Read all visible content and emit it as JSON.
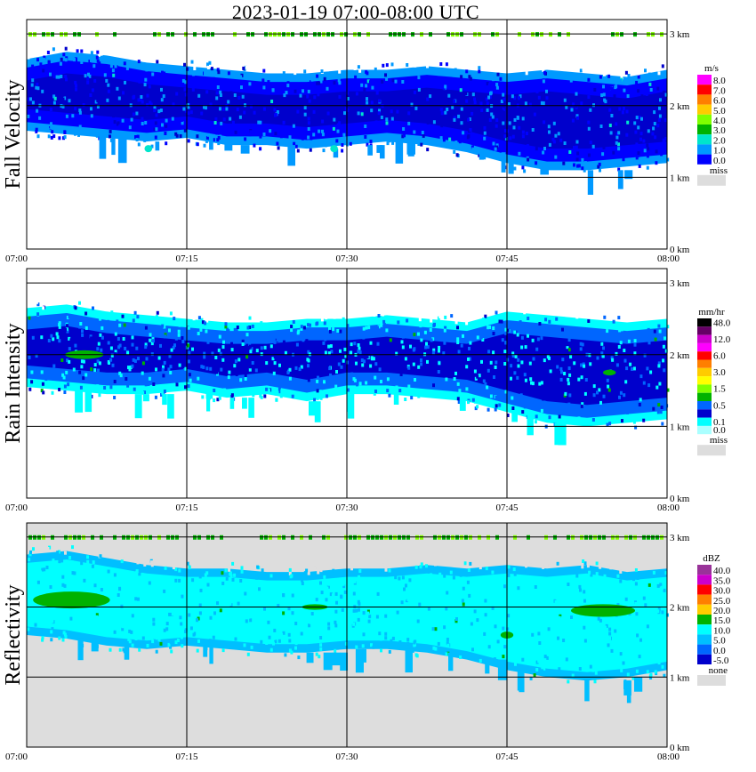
{
  "title": "2023-01-19   07:00-08:00 UTC",
  "chart_data": [
    {
      "type": "heatmap",
      "panel": "fall-velocity",
      "ylabel": "Fall Velocity",
      "x_ticks": [
        "07:00",
        "07:15",
        "07:30",
        "07:45",
        "08:00"
      ],
      "y_ticks": [
        "0 km",
        "1 km",
        "2 km",
        "3 km"
      ],
      "ylim": [
        0,
        3.2
      ],
      "grid": true,
      "legend": {
        "unit": "m/s",
        "position": "right",
        "items": [
          {
            "label": "8.0",
            "color": "#ff00ff"
          },
          {
            "label": "7.0",
            "color": "#ff0000"
          },
          {
            "label": "6.0",
            "color": "#ff7f00"
          },
          {
            "label": "5.0",
            "color": "#ffcc00"
          },
          {
            "label": "4.0",
            "color": "#7fff00"
          },
          {
            "label": "3.0",
            "color": "#00b200"
          },
          {
            "label": "2.0",
            "color": "#00e5cc"
          },
          {
            "label": "1.0",
            "color": "#0099ff"
          },
          {
            "label": "0.0",
            "color": "#0000ff"
          }
        ],
        "missing": {
          "label": "miss",
          "color": "#dddddd"
        }
      },
      "echo_top_km": [
        2.65,
        2.75,
        2.7,
        2.6,
        2.55,
        2.5,
        2.45,
        2.45,
        2.5,
        2.5,
        2.55,
        2.5,
        2.45,
        2.5,
        2.45,
        2.4,
        2.5
      ],
      "echo_base_km": [
        1.65,
        1.6,
        1.55,
        1.5,
        1.55,
        1.45,
        1.45,
        1.4,
        1.45,
        1.5,
        1.45,
        1.35,
        1.2,
        1.1,
        1.1,
        1.15,
        1.2
      ],
      "background": "#ffffff"
    },
    {
      "type": "heatmap",
      "panel": "rain-intensity",
      "ylabel": "Rain Intensity",
      "x_ticks": [
        "07:00",
        "07:15",
        "07:30",
        "07:45",
        "08:00"
      ],
      "y_ticks": [
        "0 km",
        "1 km",
        "2 km",
        "3 km"
      ],
      "ylim": [
        0,
        3.2
      ],
      "grid": true,
      "legend": {
        "unit": "mm/hr",
        "position": "right",
        "items": [
          {
            "label": "48.0",
            "color": "#000000"
          },
          {
            "label": "",
            "color": "#660066"
          },
          {
            "label": "12.0",
            "color": "#cc00cc"
          },
          {
            "label": "",
            "color": "#ff00ff"
          },
          {
            "label": "6.0",
            "color": "#ff0000"
          },
          {
            "label": "",
            "color": "#ff7f00"
          },
          {
            "label": "3.0",
            "color": "#ffcc00"
          },
          {
            "label": "",
            "color": "#ffff00"
          },
          {
            "label": "1.5",
            "color": "#7fff00"
          },
          {
            "label": "",
            "color": "#00b200"
          },
          {
            "label": "0.5",
            "color": "#0066ff"
          },
          {
            "label": "",
            "color": "#0000cc"
          },
          {
            "label": "0.1",
            "color": "#00ffff"
          },
          {
            "label": "0.0",
            "color": "#aaffff"
          }
        ],
        "missing": {
          "label": "miss",
          "color": "#dddddd"
        }
      },
      "echo_top_km": [
        2.65,
        2.7,
        2.6,
        2.55,
        2.5,
        2.45,
        2.45,
        2.5,
        2.5,
        2.55,
        2.5,
        2.45,
        2.6,
        2.55,
        2.5,
        2.45,
        2.5
      ],
      "echo_base_km": [
        1.55,
        1.5,
        1.45,
        1.45,
        1.5,
        1.4,
        1.45,
        1.35,
        1.45,
        1.45,
        1.4,
        1.35,
        1.2,
        1.05,
        1.0,
        1.05,
        1.1
      ],
      "background": "#ffffff"
    },
    {
      "type": "heatmap",
      "panel": "reflectivity",
      "ylabel": "Reflectivity",
      "x_ticks": [
        "07:00",
        "07:15",
        "07:30",
        "07:45",
        "08:00"
      ],
      "y_ticks": [
        "0 km",
        "1 km",
        "2 km",
        "3 km"
      ],
      "ylim": [
        0,
        3.2
      ],
      "grid": true,
      "legend": {
        "unit": "dBZ",
        "position": "right",
        "items": [
          {
            "label": "40.0",
            "color": "#993399"
          },
          {
            "label": "35.0",
            "color": "#cc00cc"
          },
          {
            "label": "30.0",
            "color": "#ff0000"
          },
          {
            "label": "25.0",
            "color": "#ff7f00"
          },
          {
            "label": "20.0",
            "color": "#ffcc00"
          },
          {
            "label": "15.0",
            "color": "#00b200"
          },
          {
            "label": "10.0",
            "color": "#00ffff"
          },
          {
            "label": "5.0",
            "color": "#00bfff"
          },
          {
            "label": "0.0",
            "color": "#0066ff"
          },
          {
            "label": "-5.0",
            "color": "#0000cc"
          }
        ],
        "missing": {
          "label": "none",
          "color": "#dddddd"
        }
      },
      "echo_top_km": [
        2.75,
        2.8,
        2.7,
        2.6,
        2.55,
        2.55,
        2.5,
        2.5,
        2.55,
        2.55,
        2.6,
        2.55,
        2.6,
        2.55,
        2.6,
        2.5,
        2.55
      ],
      "echo_base_km": [
        1.6,
        1.55,
        1.45,
        1.4,
        1.45,
        1.4,
        1.35,
        1.35,
        1.4,
        1.4,
        1.35,
        1.25,
        1.1,
        1.0,
        0.95,
        1.0,
        1.1
      ],
      "background": "#dddddd"
    }
  ]
}
